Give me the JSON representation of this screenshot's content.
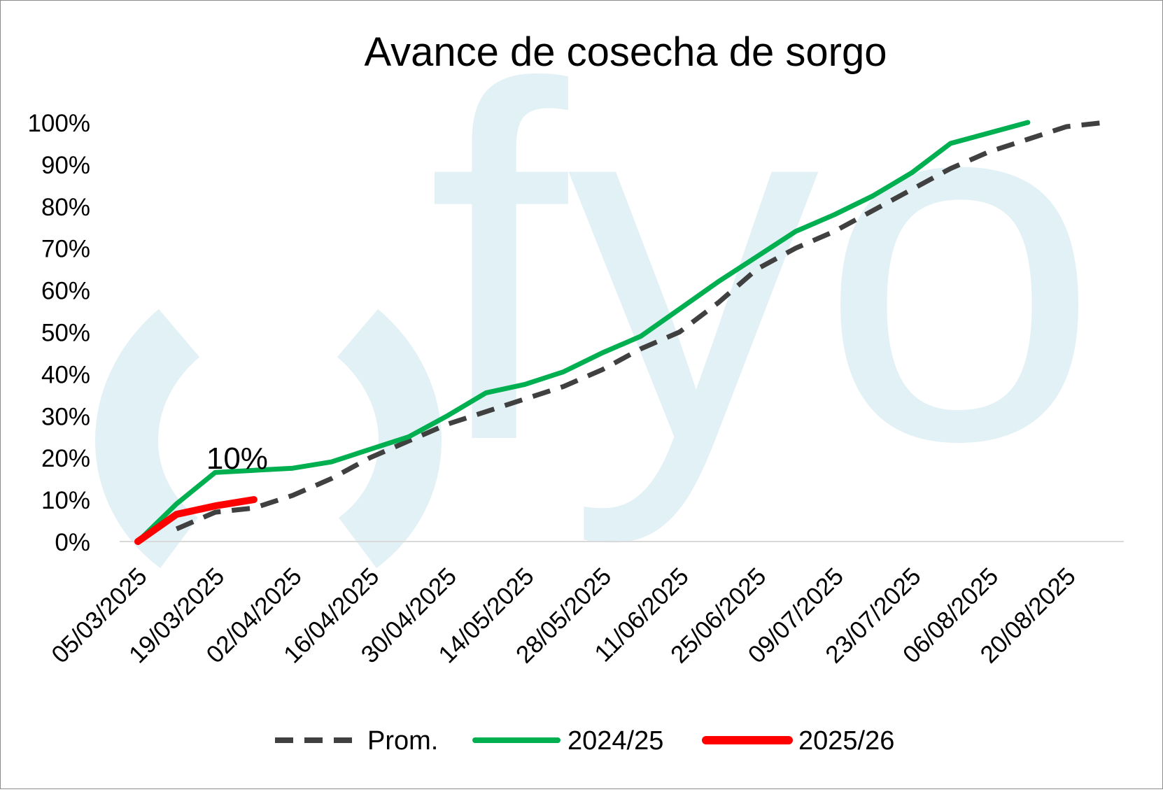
{
  "chart_data": {
    "type": "line",
    "title": "Avance de cosecha de sorgo",
    "watermark": "fyo",
    "xlabel": "",
    "ylabel": "",
    "ylim": [
      0,
      100
    ],
    "y_ticks": [
      "0%",
      "10%",
      "20%",
      "30%",
      "40%",
      "50%",
      "60%",
      "70%",
      "80%",
      "90%",
      "100%"
    ],
    "x": [
      "05/03/2025",
      "12/03/2025",
      "19/03/2025",
      "26/03/2025",
      "02/04/2025",
      "09/04/2025",
      "16/04/2025",
      "23/04/2025",
      "30/04/2025",
      "07/05/2025",
      "14/05/2025",
      "21/05/2025",
      "28/05/2025",
      "04/06/2025",
      "11/06/2025",
      "18/06/2025",
      "25/06/2025",
      "02/07/2025",
      "09/07/2025",
      "16/07/2025",
      "23/07/2025",
      "30/07/2025",
      "06/08/2025",
      "13/08/2025",
      "20/08/2025",
      "27/08/2025"
    ],
    "x_tick_labels": [
      "05/03/2025",
      "19/03/2025",
      "02/04/2025",
      "16/04/2025",
      "30/04/2025",
      "14/05/2025",
      "28/05/2025",
      "11/06/2025",
      "25/06/2025",
      "09/07/2025",
      "23/07/2025",
      "06/08/2025",
      "20/08/2025"
    ],
    "series": [
      {
        "name": "Prom.",
        "color": "#404040",
        "dash": true,
        "values": [
          null,
          3,
          7,
          8,
          11,
          15,
          20,
          24,
          28,
          31,
          34,
          37,
          41,
          46,
          50,
          57,
          65,
          70,
          74,
          79,
          84,
          89,
          93,
          96,
          99,
          100
        ]
      },
      {
        "name": "2024/25",
        "color": "#00b050",
        "dash": false,
        "values": [
          0,
          9,
          16.5,
          17,
          17.5,
          19,
          22,
          25,
          30,
          35.5,
          37.5,
          40.5,
          45,
          49,
          55.5,
          62,
          68,
          74,
          78,
          82.5,
          88,
          95,
          97.5,
          100,
          null,
          null
        ]
      },
      {
        "name": "2025/26",
        "color": "#ff0000",
        "dash": false,
        "values": [
          0,
          6.5,
          8.5,
          10,
          null,
          null,
          null,
          null,
          null,
          null,
          null,
          null,
          null,
          null,
          null,
          null,
          null,
          null,
          null,
          null,
          null,
          null,
          null,
          null,
          null,
          null
        ]
      }
    ],
    "annotations": [
      {
        "text": "10%",
        "x": "26/03/2025",
        "y": 10
      }
    ],
    "legend": "bottom",
    "grid": false
  }
}
